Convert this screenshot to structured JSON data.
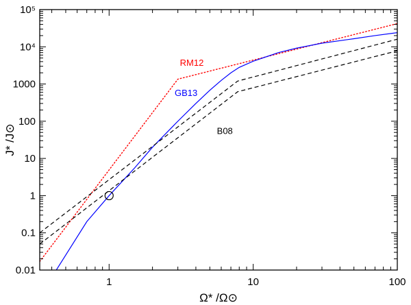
{
  "chart_data": {
    "type": "line",
    "title": "",
    "xlabel": "Ω* /Ω⊙",
    "ylabel": "J* /J⊙",
    "xscale": "log",
    "yscale": "log",
    "xlim": [
      0.33,
      100
    ],
    "ylim": [
      0.01,
      100000
    ],
    "x_ticks": [
      {
        "value": 1,
        "label": "1"
      },
      {
        "value": 10,
        "label": "10"
      },
      {
        "value": 100,
        "label": "100"
      }
    ],
    "y_ticks": [
      {
        "value": 0.01,
        "label": "0.01"
      },
      {
        "value": 0.1,
        "label": "0.1"
      },
      {
        "value": 1,
        "label": "1"
      },
      {
        "value": 10,
        "label": "10"
      },
      {
        "value": 100,
        "label": "100"
      },
      {
        "value": 1000,
        "label": "1000"
      },
      {
        "value": 10000,
        "label": "10⁴"
      },
      {
        "value": 100000,
        "label": "10⁵"
      }
    ],
    "series": [
      {
        "name": "RM12",
        "color": "#ff0000",
        "style": "dotted",
        "x": [
          0.33,
          3.0,
          100
        ],
        "y": [
          0.017,
          1350,
          42000
        ]
      },
      {
        "name": "GB13",
        "color": "#0000ff",
        "style": "solid",
        "x": [
          0.43,
          0.7,
          1.0,
          1.5,
          2.0,
          3.0,
          4.0,
          5.0,
          6.0,
          7.0,
          8.0,
          10,
          15,
          20,
          30,
          50,
          70,
          100
        ],
        "y": [
          0.01,
          0.2,
          1.0,
          5.5,
          20,
          100,
          300,
          680,
          1250,
          2000,
          2800,
          4100,
          7000,
          9200,
          12500,
          16500,
          20000,
          24000
        ]
      },
      {
        "name": "B08 (upper)",
        "color": "#000000",
        "style": "dashed",
        "x": [
          0.33,
          7.8,
          100
        ],
        "y": [
          0.1,
          1200,
          16000
        ]
      },
      {
        "name": "B08 (lower)",
        "color": "#000000",
        "style": "dashed",
        "x": [
          0.33,
          7.8,
          100
        ],
        "y": [
          0.05,
          620,
          7800
        ]
      }
    ],
    "annotations": [
      {
        "text": "RM12",
        "color": "#ff0000",
        "x": 3.1,
        "y": 3100
      },
      {
        "text": "GB13",
        "color": "#0000ff",
        "x": 2.85,
        "y": 480
      },
      {
        "text": "B08",
        "color": "#000000",
        "x": 5.6,
        "y": 45
      }
    ],
    "marker": {
      "shape": "circle",
      "x": 1,
      "y": 1
    }
  }
}
